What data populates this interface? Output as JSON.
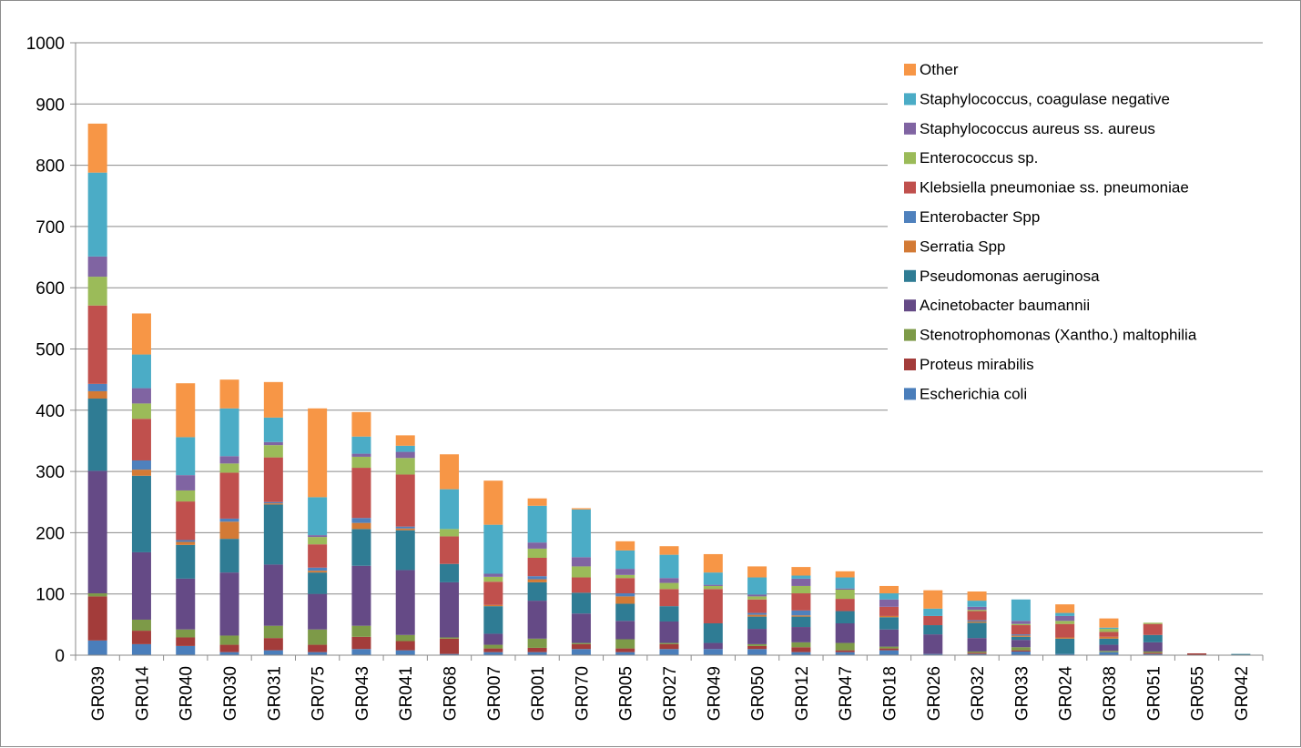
{
  "chart_data": {
    "type": "bar",
    "stacked": true,
    "ylim": [
      0,
      1000
    ],
    "yticks": [
      0,
      100,
      200,
      300,
      400,
      500,
      600,
      700,
      800,
      900,
      1000
    ],
    "grid": true,
    "legend_position": "top-right",
    "categories": [
      "GR039",
      "GR014",
      "GR040",
      "GR030",
      "GR031",
      "GR075",
      "GR043",
      "GR041",
      "GR068",
      "GR007",
      "GR001",
      "GR070",
      "GR005",
      "GR027",
      "GR049",
      "GR050",
      "GR012",
      "GR047",
      "GR018",
      "GR026",
      "GR032",
      "GR033",
      "GR024",
      "GR038",
      "GR051",
      "GR055",
      "GR042"
    ],
    "series": [
      {
        "name": "Escherichia coli",
        "color": "#4A7EBB",
        "values": [
          24,
          18,
          15,
          5,
          8,
          5,
          10,
          8,
          2,
          5,
          5,
          10,
          5,
          10,
          10,
          10,
          5,
          5,
          8,
          2,
          2,
          6,
          2,
          5,
          2,
          0,
          0
        ]
      },
      {
        "name": "Proteus mirabilis",
        "color": "#A33C3A",
        "values": [
          72,
          22,
          14,
          12,
          20,
          12,
          20,
          15,
          25,
          6,
          7,
          8,
          6,
          8,
          0,
          5,
          8,
          3,
          3,
          0,
          2,
          2,
          0,
          0,
          2,
          3,
          0
        ]
      },
      {
        "name": "Stenotrophomonas (Xantho.) maltophilia",
        "color": "#7D9A48",
        "values": [
          5,
          18,
          13,
          15,
          20,
          25,
          18,
          10,
          2,
          6,
          15,
          2,
          15,
          2,
          0,
          3,
          8,
          12,
          3,
          0,
          2,
          5,
          0,
          2,
          2,
          0,
          0
        ]
      },
      {
        "name": "Acinetobacter baumannii",
        "color": "#654A86",
        "values": [
          200,
          110,
          83,
          103,
          100,
          58,
          98,
          106,
          90,
          18,
          62,
          48,
          30,
          35,
          10,
          25,
          25,
          32,
          28,
          32,
          22,
          12,
          0,
          10,
          15,
          0,
          0
        ]
      },
      {
        "name": "Pseudomonas aeruginosa",
        "color": "#2F7C94",
        "values": [
          118,
          125,
          55,
          55,
          98,
          35,
          60,
          65,
          30,
          45,
          30,
          34,
          28,
          25,
          32,
          20,
          17,
          20,
          20,
          15,
          25,
          5,
          25,
          10,
          12,
          0,
          2
        ]
      },
      {
        "name": "Serratia Spp",
        "color": "#D37A35",
        "values": [
          12,
          10,
          5,
          28,
          2,
          3,
          10,
          3,
          0,
          2,
          5,
          0,
          12,
          0,
          0,
          3,
          2,
          0,
          2,
          0,
          2,
          2,
          2,
          3,
          0,
          0,
          0
        ]
      },
      {
        "name": "Enterobacter Spp",
        "color": "#4F81BD",
        "values": [
          12,
          15,
          3,
          5,
          2,
          5,
          8,
          3,
          0,
          0,
          5,
          0,
          5,
          0,
          0,
          3,
          8,
          0,
          0,
          0,
          2,
          2,
          0,
          0,
          0,
          0,
          0
        ]
      },
      {
        "name": "Klebsiella pneumoniae ss. pneumoniae",
        "color": "#C0504D",
        "values": [
          128,
          68,
          63,
          75,
          73,
          38,
          82,
          85,
          45,
          38,
          30,
          25,
          25,
          28,
          56,
          22,
          28,
          20,
          15,
          15,
          15,
          15,
          22,
          8,
          18,
          0,
          0
        ]
      },
      {
        "name": "Enterococcus sp.",
        "color": "#9BBB59",
        "values": [
          47,
          25,
          18,
          15,
          20,
          12,
          18,
          27,
          12,
          8,
          15,
          18,
          5,
          10,
          5,
          5,
          12,
          15,
          0,
          0,
          2,
          2,
          5,
          5,
          2,
          0,
          0
        ]
      },
      {
        "name": "Staphylococcus aureus ss. aureus",
        "color": "#8064A2",
        "values": [
          33,
          25,
          25,
          12,
          5,
          3,
          5,
          10,
          0,
          5,
          10,
          15,
          10,
          8,
          2,
          3,
          12,
          2,
          12,
          0,
          5,
          5,
          8,
          0,
          0,
          0,
          0
        ]
      },
      {
        "name": "Staphylococcus, coagulase negative",
        "color": "#4BACC6",
        "values": [
          137,
          55,
          62,
          78,
          40,
          62,
          28,
          10,
          65,
          80,
          60,
          78,
          30,
          38,
          20,
          28,
          5,
          18,
          10,
          12,
          10,
          35,
          5,
          2,
          0,
          0,
          0
        ]
      },
      {
        "name": "Other",
        "color": "#F79646",
        "values": [
          80,
          67,
          88,
          47,
          58,
          145,
          40,
          17,
          57,
          72,
          12,
          2,
          15,
          14,
          30,
          18,
          14,
          10,
          12,
          30,
          15,
          0,
          14,
          15,
          0,
          0,
          0
        ]
      }
    ]
  }
}
